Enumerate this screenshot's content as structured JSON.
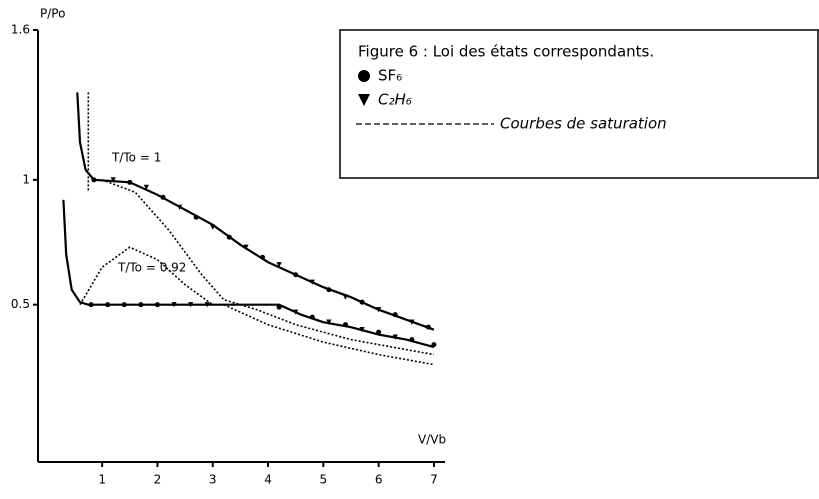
{
  "chart_data": {
    "type": "line",
    "title": "Figure 6 : Loi des états correspondants.",
    "y_label": "P/Po",
    "x_label": "V/Vb",
    "xlim": [
      -0.16,
      7.2
    ],
    "ylim": [
      -0.13,
      1.6
    ],
    "xticks": [
      1,
      2,
      3,
      4,
      5,
      6,
      7
    ],
    "yticks": [
      0.5,
      1,
      1.6
    ],
    "grid": false,
    "legend": "upper right",
    "series": [
      {
        "name": "SF₆",
        "style": "circle",
        "color": "#000000",
        "x": [
          0.85,
          1.5,
          2.1,
          2.7,
          3.3,
          3.9,
          4.5,
          5.1,
          5.7,
          6.3,
          6.9,
          0.8,
          1.1,
          1.4,
          1.7,
          2.0,
          4.2,
          4.8,
          5.4,
          6.0,
          6.6,
          7.0
        ],
        "values": [
          1.0,
          0.99,
          0.93,
          0.85,
          0.77,
          0.69,
          0.62,
          0.56,
          0.51,
          0.46,
          0.41,
          0.5,
          0.5,
          0.5,
          0.5,
          0.5,
          0.49,
          0.45,
          0.42,
          0.39,
          0.36,
          0.34
        ]
      },
      {
        "name": "C₂H₆",
        "style": "triangle",
        "color": "#000000",
        "x": [
          1.2,
          1.8,
          2.4,
          3.0,
          3.6,
          4.2,
          4.8,
          5.4,
          6.0,
          6.6,
          2.3,
          2.6,
          2.9,
          4.5,
          5.1,
          5.7,
          6.3
        ],
        "values": [
          1.0,
          0.97,
          0.89,
          0.81,
          0.73,
          0.66,
          0.59,
          0.53,
          0.48,
          0.43,
          0.5,
          0.5,
          0.5,
          0.47,
          0.43,
          0.4,
          0.37
        ]
      },
      {
        "name": "Courbes de saturation",
        "style": "dotted",
        "color": "#000000",
        "x": [
          0.75,
          0.75,
          0.6,
          0.6,
          1.0,
          1.5,
          2.0,
          2.5,
          3.0,
          1.0,
          1.0,
          1.6,
          2.2,
          2.8,
          3.2,
          3.8,
          4.5,
          5.5,
          7.0,
          3.2,
          3.2,
          4.0,
          5.0,
          6.0,
          7.0
        ],
        "values": [
          1.35,
          0.95,
          null,
          0.5,
          0.65,
          0.73,
          0.68,
          0.58,
          0.5,
          null,
          1.0,
          0.95,
          0.8,
          0.62,
          0.52,
          0.48,
          0.42,
          0.36,
          0.3,
          null,
          0.5,
          0.42,
          0.35,
          0.3,
          0.26
        ]
      },
      {
        "name": "T/To = 1",
        "style": "solid",
        "color": "#000000",
        "x": [
          0.55,
          0.6,
          0.7,
          0.85,
          1.5,
          2.0,
          2.5,
          3,
          3.5,
          4,
          4.5,
          5,
          5.5,
          6,
          6.5,
          7
        ],
        "values": [
          1.35,
          1.15,
          1.04,
          1.0,
          0.99,
          0.94,
          0.88,
          0.82,
          0.74,
          0.67,
          0.62,
          0.57,
          0.53,
          0.48,
          0.44,
          0.4
        ]
      },
      {
        "name": "T/To = 0.92",
        "style": "solid",
        "color": "#000000",
        "x": [
          0.3,
          0.35,
          0.45,
          0.6,
          0.75,
          2,
          3,
          4.2,
          4.6,
          5,
          5.5,
          6,
          6.5,
          7
        ],
        "values": [
          0.92,
          0.7,
          0.56,
          0.51,
          0.5,
          0.5,
          0.5,
          0.5,
          0.46,
          0.43,
          0.41,
          0.38,
          0.36,
          0.33
        ]
      }
    ]
  }
}
